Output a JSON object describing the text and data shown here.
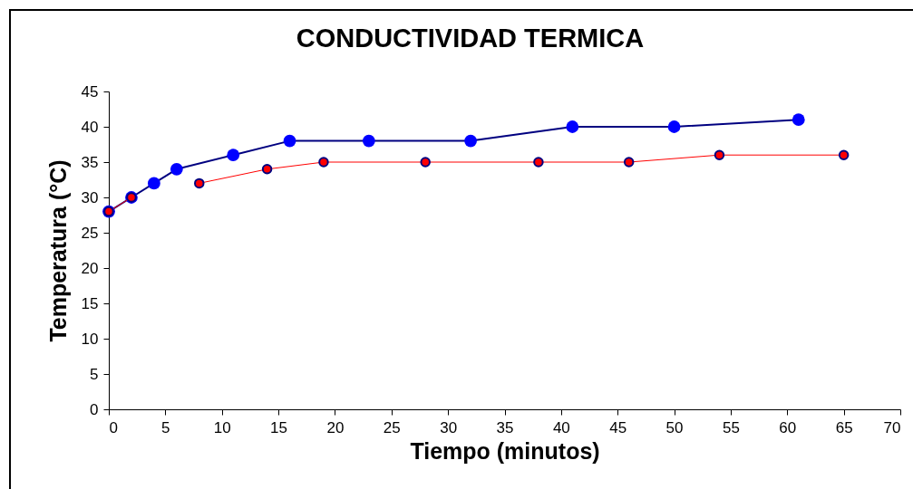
{
  "chart_data": {
    "type": "line",
    "title": "CONDUCTIVIDAD TERMICA",
    "xlabel": "Tiempo (minutos)",
    "ylabel": "Temperatura (°C)",
    "xlim": [
      0,
      70
    ],
    "xticks": [
      0,
      5,
      10,
      15,
      20,
      25,
      30,
      35,
      40,
      45,
      50,
      55,
      60,
      65,
      70
    ],
    "ylim": [
      0,
      45
    ],
    "yticks": [
      0,
      5,
      10,
      15,
      20,
      25,
      30,
      35,
      40,
      45
    ],
    "grid": false,
    "marker": "circle",
    "line_style": "solid",
    "series": [
      {
        "color": "#0000ff",
        "x": [
          0,
          2,
          4,
          6,
          11,
          16,
          23,
          32,
          41,
          50,
          61
        ],
        "values": [
          28,
          30,
          32,
          34,
          36,
          38,
          38,
          38,
          40,
          40,
          41
        ]
      },
      {
        "color": "#ff0000",
        "x": [
          0,
          2
        ],
        "values": [
          28,
          30
        ]
      },
      {
        "color": "#ff0000",
        "x": [
          8,
          14,
          19,
          28,
          38,
          46,
          54,
          65
        ],
        "values": [
          32,
          34,
          35,
          35,
          35,
          35,
          36,
          36
        ]
      }
    ]
  }
}
